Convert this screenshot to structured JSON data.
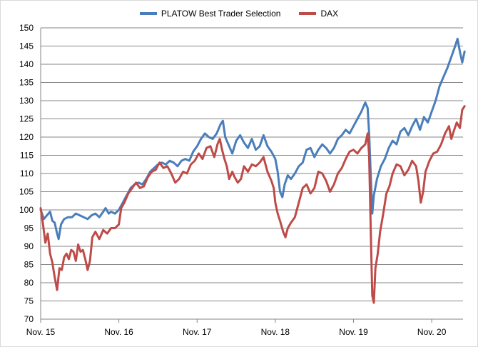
{
  "chart_data": {
    "type": "line",
    "title": "",
    "xlabel": "",
    "ylabel": "",
    "ylim": [
      70,
      150
    ],
    "yticks": [
      70,
      75,
      80,
      85,
      90,
      95,
      100,
      105,
      110,
      115,
      120,
      125,
      130,
      135,
      140,
      145,
      150
    ],
    "xlim": [
      0,
      5.4
    ],
    "xticks": [
      {
        "x": 0,
        "label": "Nov. 15"
      },
      {
        "x": 1,
        "label": "Nov. 16"
      },
      {
        "x": 2,
        "label": "Nov. 17"
      },
      {
        "x": 3,
        "label": "Nov. 18"
      },
      {
        "x": 4,
        "label": "Nov. 19"
      },
      {
        "x": 5,
        "label": "Nov. 20"
      }
    ],
    "x_unit": "years since Nov. 15",
    "grid": "horizontal",
    "legend_position": "top",
    "series": [
      {
        "name": "PLATOW Best Trader Selection",
        "color": "#4a7ebb",
        "points": [
          [
            0.0,
            100.0
          ],
          [
            0.04,
            97.5
          ],
          [
            0.08,
            98.5
          ],
          [
            0.12,
            99.5
          ],
          [
            0.15,
            97.0
          ],
          [
            0.18,
            96.5
          ],
          [
            0.21,
            93.5
          ],
          [
            0.23,
            92.0
          ],
          [
            0.26,
            96.0
          ],
          [
            0.3,
            97.5
          ],
          [
            0.35,
            98.0
          ],
          [
            0.4,
            98.0
          ],
          [
            0.45,
            99.0
          ],
          [
            0.5,
            98.5
          ],
          [
            0.55,
            98.0
          ],
          [
            0.6,
            97.5
          ],
          [
            0.65,
            98.5
          ],
          [
            0.7,
            99.0
          ],
          [
            0.75,
            98.0
          ],
          [
            0.8,
            99.5
          ],
          [
            0.83,
            100.5
          ],
          [
            0.87,
            99.0
          ],
          [
            0.9,
            99.5
          ],
          [
            0.95,
            99.0
          ],
          [
            1.0,
            100.0
          ],
          [
            1.05,
            102.0
          ],
          [
            1.1,
            104.0
          ],
          [
            1.15,
            106.0
          ],
          [
            1.2,
            107.0
          ],
          [
            1.25,
            107.5
          ],
          [
            1.3,
            107.0
          ],
          [
            1.35,
            108.5
          ],
          [
            1.4,
            110.5
          ],
          [
            1.45,
            111.5
          ],
          [
            1.5,
            112.5
          ],
          [
            1.55,
            113.0
          ],
          [
            1.6,
            112.5
          ],
          [
            1.65,
            113.5
          ],
          [
            1.7,
            113.0
          ],
          [
            1.75,
            112.0
          ],
          [
            1.8,
            113.5
          ],
          [
            1.85,
            114.0
          ],
          [
            1.9,
            113.5
          ],
          [
            1.95,
            116.0
          ],
          [
            2.0,
            117.5
          ],
          [
            2.05,
            119.5
          ],
          [
            2.1,
            121.0
          ],
          [
            2.15,
            120.0
          ],
          [
            2.2,
            119.5
          ],
          [
            2.25,
            121.0
          ],
          [
            2.3,
            123.5
          ],
          [
            2.33,
            124.5
          ],
          [
            2.36,
            120.0
          ],
          [
            2.4,
            118.0
          ],
          [
            2.45,
            115.5
          ],
          [
            2.5,
            119.0
          ],
          [
            2.55,
            120.5
          ],
          [
            2.6,
            118.5
          ],
          [
            2.65,
            117.0
          ],
          [
            2.7,
            119.5
          ],
          [
            2.75,
            116.5
          ],
          [
            2.8,
            117.5
          ],
          [
            2.85,
            120.5
          ],
          [
            2.9,
            117.5
          ],
          [
            2.95,
            116.0
          ],
          [
            3.0,
            114.0
          ],
          [
            3.03,
            110.5
          ],
          [
            3.06,
            105.0
          ],
          [
            3.09,
            103.5
          ],
          [
            3.12,
            107.0
          ],
          [
            3.16,
            109.5
          ],
          [
            3.2,
            108.5
          ],
          [
            3.25,
            110.0
          ],
          [
            3.3,
            112.0
          ],
          [
            3.35,
            113.0
          ],
          [
            3.4,
            116.5
          ],
          [
            3.45,
            117.0
          ],
          [
            3.5,
            114.5
          ],
          [
            3.55,
            116.5
          ],
          [
            3.6,
            118.0
          ],
          [
            3.65,
            117.0
          ],
          [
            3.7,
            115.5
          ],
          [
            3.75,
            117.0
          ],
          [
            3.8,
            119.5
          ],
          [
            3.85,
            120.5
          ],
          [
            3.9,
            122.0
          ],
          [
            3.95,
            121.0
          ],
          [
            4.0,
            123.0
          ],
          [
            4.05,
            125.0
          ],
          [
            4.1,
            127.0
          ],
          [
            4.15,
            129.5
          ],
          [
            4.18,
            128.0
          ],
          [
            4.2,
            121.0
          ],
          [
            4.22,
            110.0
          ],
          [
            4.24,
            99.0
          ],
          [
            4.26,
            104.0
          ],
          [
            4.3,
            108.5
          ],
          [
            4.35,
            112.0
          ],
          [
            4.4,
            114.0
          ],
          [
            4.45,
            117.0
          ],
          [
            4.5,
            119.0
          ],
          [
            4.55,
            118.0
          ],
          [
            4.6,
            121.5
          ],
          [
            4.65,
            122.5
          ],
          [
            4.7,
            120.5
          ],
          [
            4.75,
            123.0
          ],
          [
            4.8,
            125.0
          ],
          [
            4.85,
            122.0
          ],
          [
            4.9,
            125.5
          ],
          [
            4.95,
            124.0
          ],
          [
            5.0,
            127.0
          ],
          [
            5.05,
            130.0
          ],
          [
            5.1,
            134.0
          ],
          [
            5.15,
            136.5
          ],
          [
            5.2,
            139.0
          ],
          [
            5.25,
            142.0
          ],
          [
            5.3,
            145.0
          ],
          [
            5.33,
            147.0
          ],
          [
            5.36,
            143.5
          ],
          [
            5.39,
            140.5
          ],
          [
            5.42,
            143.5
          ]
        ]
      },
      {
        "name": "DAX",
        "color": "#be4b48",
        "points": [
          [
            0.0,
            100.5
          ],
          [
            0.03,
            96.0
          ],
          [
            0.06,
            91.0
          ],
          [
            0.09,
            93.5
          ],
          [
            0.12,
            88.0
          ],
          [
            0.15,
            85.5
          ],
          [
            0.18,
            81.5
          ],
          [
            0.21,
            78.0
          ],
          [
            0.24,
            84.0
          ],
          [
            0.27,
            83.5
          ],
          [
            0.3,
            87.0
          ],
          [
            0.33,
            88.0
          ],
          [
            0.36,
            86.5
          ],
          [
            0.39,
            89.0
          ],
          [
            0.42,
            88.5
          ],
          [
            0.45,
            86.0
          ],
          [
            0.48,
            90.5
          ],
          [
            0.51,
            88.5
          ],
          [
            0.54,
            89.0
          ],
          [
            0.57,
            86.5
          ],
          [
            0.6,
            83.5
          ],
          [
            0.63,
            86.0
          ],
          [
            0.66,
            92.5
          ],
          [
            0.7,
            94.0
          ],
          [
            0.75,
            92.0
          ],
          [
            0.8,
            94.5
          ],
          [
            0.85,
            93.5
          ],
          [
            0.9,
            95.0
          ],
          [
            0.95,
            95.0
          ],
          [
            1.0,
            96.0
          ],
          [
            1.03,
            100.5
          ],
          [
            1.07,
            102.0
          ],
          [
            1.12,
            104.5
          ],
          [
            1.17,
            106.0
          ],
          [
            1.22,
            107.5
          ],
          [
            1.27,
            106.0
          ],
          [
            1.32,
            106.5
          ],
          [
            1.37,
            109.0
          ],
          [
            1.42,
            110.5
          ],
          [
            1.47,
            111.0
          ],
          [
            1.52,
            113.0
          ],
          [
            1.57,
            111.5
          ],
          [
            1.62,
            112.0
          ],
          [
            1.67,
            110.0
          ],
          [
            1.72,
            107.5
          ],
          [
            1.77,
            108.5
          ],
          [
            1.82,
            110.5
          ],
          [
            1.87,
            110.0
          ],
          [
            1.92,
            112.5
          ],
          [
            1.97,
            113.5
          ],
          [
            2.02,
            115.5
          ],
          [
            2.07,
            114.0
          ],
          [
            2.12,
            117.0
          ],
          [
            2.17,
            117.5
          ],
          [
            2.22,
            114.5
          ],
          [
            2.26,
            118.0
          ],
          [
            2.29,
            119.5
          ],
          [
            2.32,
            116.5
          ],
          [
            2.35,
            114.0
          ],
          [
            2.38,
            112.0
          ],
          [
            2.41,
            108.5
          ],
          [
            2.45,
            110.5
          ],
          [
            2.48,
            109.0
          ],
          [
            2.52,
            107.5
          ],
          [
            2.56,
            108.5
          ],
          [
            2.6,
            112.0
          ],
          [
            2.65,
            110.5
          ],
          [
            2.7,
            112.5
          ],
          [
            2.75,
            112.0
          ],
          [
            2.8,
            113.0
          ],
          [
            2.85,
            114.5
          ],
          [
            2.9,
            110.5
          ],
          [
            2.95,
            108.0
          ],
          [
            2.98,
            106.0
          ],
          [
            3.0,
            102.0
          ],
          [
            3.03,
            99.0
          ],
          [
            3.06,
            97.0
          ],
          [
            3.1,
            94.0
          ],
          [
            3.13,
            92.5
          ],
          [
            3.16,
            95.0
          ],
          [
            3.2,
            96.5
          ],
          [
            3.25,
            98.0
          ],
          [
            3.3,
            102.0
          ],
          [
            3.35,
            106.0
          ],
          [
            3.4,
            107.0
          ],
          [
            3.45,
            104.5
          ],
          [
            3.5,
            106.0
          ],
          [
            3.55,
            110.5
          ],
          [
            3.6,
            110.0
          ],
          [
            3.65,
            108.0
          ],
          [
            3.7,
            105.0
          ],
          [
            3.75,
            107.0
          ],
          [
            3.8,
            110.0
          ],
          [
            3.85,
            111.5
          ],
          [
            3.9,
            114.0
          ],
          [
            3.95,
            116.0
          ],
          [
            4.0,
            116.5
          ],
          [
            4.05,
            115.5
          ],
          [
            4.1,
            117.0
          ],
          [
            4.15,
            118.0
          ],
          [
            4.18,
            121.0
          ],
          [
            4.2,
            115.0
          ],
          [
            4.22,
            95.0
          ],
          [
            4.24,
            76.5
          ],
          [
            4.26,
            74.5
          ],
          [
            4.28,
            84.0
          ],
          [
            4.31,
            88.0
          ],
          [
            4.34,
            94.0
          ],
          [
            4.38,
            99.0
          ],
          [
            4.42,
            104.5
          ],
          [
            4.46,
            106.5
          ],
          [
            4.5,
            110.0
          ],
          [
            4.55,
            112.5
          ],
          [
            4.6,
            112.0
          ],
          [
            4.65,
            109.5
          ],
          [
            4.7,
            111.0
          ],
          [
            4.75,
            113.5
          ],
          [
            4.8,
            112.0
          ],
          [
            4.83,
            108.0
          ],
          [
            4.86,
            102.0
          ],
          [
            4.89,
            105.0
          ],
          [
            4.92,
            110.5
          ],
          [
            4.97,
            113.5
          ],
          [
            5.02,
            115.5
          ],
          [
            5.07,
            116.0
          ],
          [
            5.12,
            118.0
          ],
          [
            5.17,
            121.0
          ],
          [
            5.22,
            123.0
          ],
          [
            5.25,
            119.5
          ],
          [
            5.28,
            121.5
          ],
          [
            5.32,
            124.0
          ],
          [
            5.36,
            122.5
          ],
          [
            5.39,
            127.5
          ],
          [
            5.42,
            128.5
          ]
        ]
      }
    ]
  }
}
